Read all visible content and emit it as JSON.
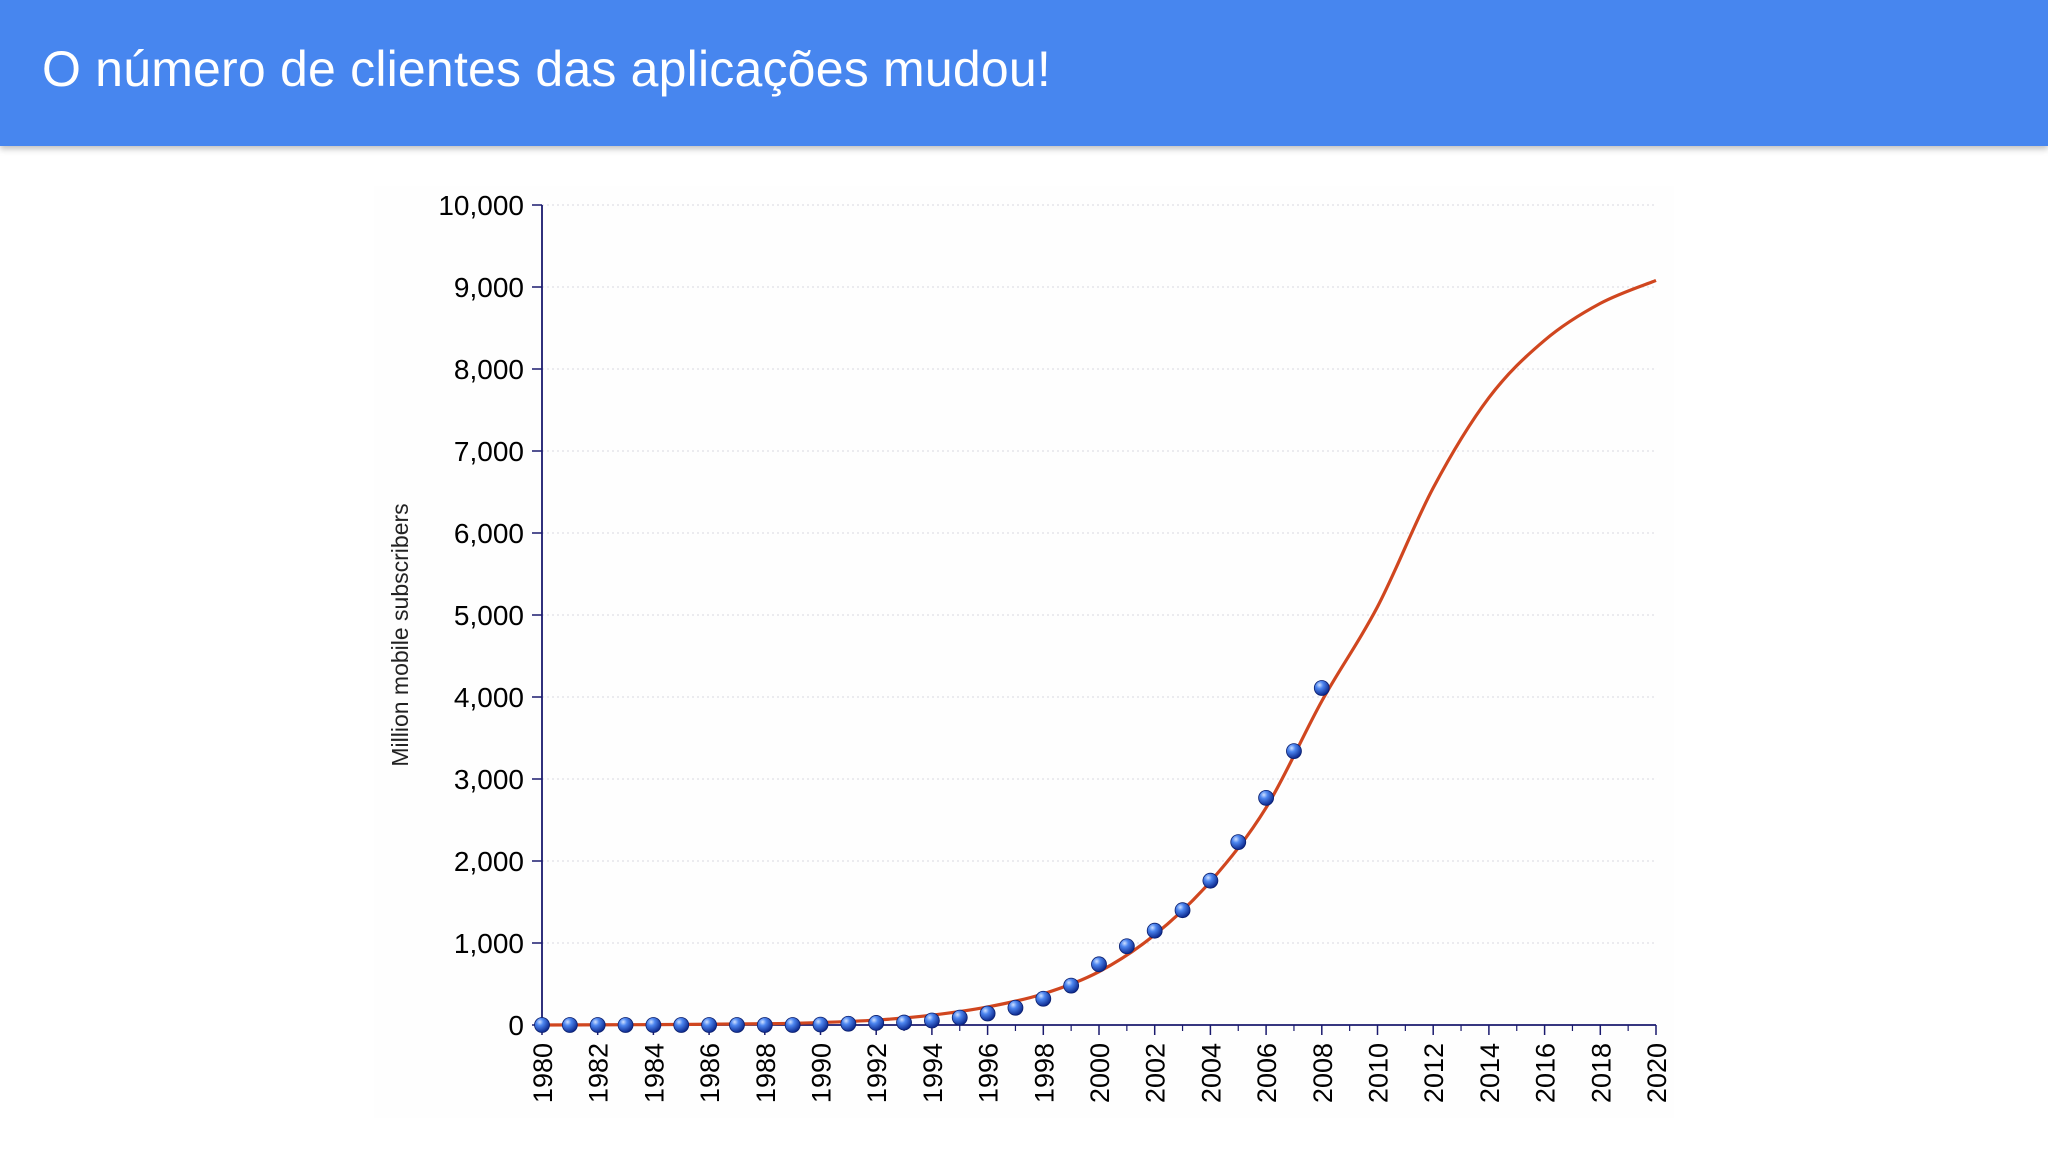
{
  "header": {
    "title": "O número de clientes das aplicações mudou!",
    "background": "#4786ef"
  },
  "chart_data": {
    "type": "scatter",
    "ylabel": "Million mobile subscribers",
    "xlabel": "",
    "title": "",
    "xlim": [
      1980,
      2020
    ],
    "ylim": [
      0,
      10000
    ],
    "grid": true,
    "x_ticks": [
      "1980",
      "1982",
      "1984",
      "1986",
      "1988",
      "1990",
      "1992",
      "1994",
      "1996",
      "1998",
      "2000",
      "2002",
      "2004",
      "2006",
      "2008",
      "2010",
      "2012",
      "2014",
      "2016",
      "2018",
      "2020"
    ],
    "y_ticks": [
      "0",
      "1,000",
      "2,000",
      "3,000",
      "4,000",
      "5,000",
      "6,000",
      "7,000",
      "8,000",
      "9,000",
      "10,000"
    ],
    "series": [
      {
        "kind": "points",
        "color": "#1d4fc9",
        "x": [
          1980,
          1981,
          1982,
          1983,
          1984,
          1985,
          1986,
          1987,
          1988,
          1989,
          1990,
          1991,
          1992,
          1993,
          1994,
          1995,
          1996,
          1997,
          1998,
          1999,
          2000,
          2001,
          2002,
          2003,
          2004,
          2005,
          2006,
          2007,
          2008
        ],
        "y": [
          0,
          0,
          0,
          0,
          0,
          0,
          0,
          0,
          0,
          0,
          5,
          15,
          25,
          30,
          55,
          90,
          140,
          210,
          320,
          480,
          740,
          960,
          1150,
          1400,
          1760,
          2230,
          2770,
          3340,
          4110
        ]
      },
      {
        "kind": "line",
        "color": "#d0461f",
        "x": [
          1980,
          1984,
          1988,
          1990,
          1992,
          1994,
          1996,
          1998,
          2000,
          2002,
          2004,
          2006,
          2008,
          2010,
          2012,
          2014,
          2016,
          2018,
          2020
        ],
        "y": [
          0,
          5,
          15,
          30,
          60,
          120,
          220,
          380,
          650,
          1100,
          1750,
          2650,
          3950,
          5100,
          6550,
          7650,
          8350,
          8800,
          9080
        ]
      }
    ]
  }
}
